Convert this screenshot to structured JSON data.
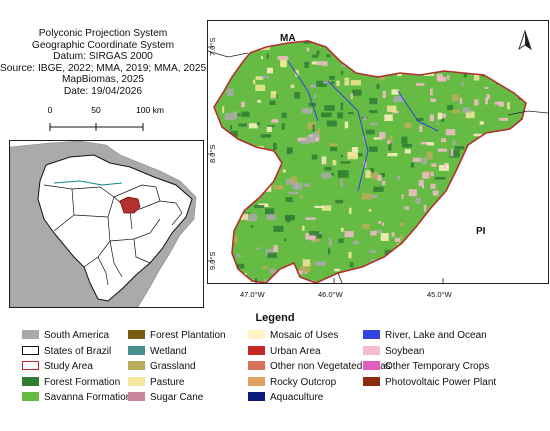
{
  "meta": {
    "lines": [
      "Polyconic Projection System",
      "Geographic Coordinate System",
      "Datum: SIRGAS 2000",
      "Source: IBGE, 2022; MMA, 2019; MMA, 2025",
      "MapBiomas, 2025",
      "Date: 19/04/2026"
    ]
  },
  "scale": {
    "labels": [
      "0",
      "50",
      "100 km"
    ]
  },
  "map": {
    "state_labels": [
      "MA",
      "PI"
    ],
    "lat_labels": [
      "7.0°S",
      "8.0°S",
      "9.0°S"
    ],
    "lon_labels": [
      "47.0°W",
      "46.0°W",
      "45.0°W"
    ],
    "north_arrow": "north-arrow-icon"
  },
  "legend": {
    "title": "Legend",
    "items": [
      {
        "label": "South America",
        "color": "#aaaaaa"
      },
      {
        "label": "States of Brazil",
        "color": "#ffffff",
        "border": "#111111"
      },
      {
        "label": "Study Area",
        "color": "#ffffff",
        "border": "#c0282d"
      },
      {
        "label": "Forest Formation",
        "color": "#2e7d32"
      },
      {
        "label": "Savanna Formation",
        "color": "#66bb44"
      },
      {
        "label": "Forest Plantation",
        "color": "#7a5c14"
      },
      {
        "label": "Wetland",
        "color": "#4a8f8f"
      },
      {
        "label": "Grassland",
        "color": "#b8ad5a"
      },
      {
        "label": "Pasture",
        "color": "#f2e79a"
      },
      {
        "label": "Sugar Cane",
        "color": "#c7849c"
      },
      {
        "label": "Mosaic of Uses",
        "color": "#fff2c4"
      },
      {
        "label": "Urban Area",
        "color": "#c62828"
      },
      {
        "label": "Other non Vegetated Areas",
        "color": "#d9705c"
      },
      {
        "label": "Rocky Outcrop",
        "color": "#e0a060"
      },
      {
        "label": "Aquaculture",
        "color": "#0a1a7a"
      },
      {
        "label": "River, Lake and Ocean",
        "color": "#3344dd"
      },
      {
        "label": "Soybean",
        "color": "#f4bccd"
      },
      {
        "label": "Other Temporary Crops",
        "color": "#e060c0"
      },
      {
        "label": "Photovoltaic Power Plant",
        "color": "#8b2e0e"
      }
    ]
  }
}
